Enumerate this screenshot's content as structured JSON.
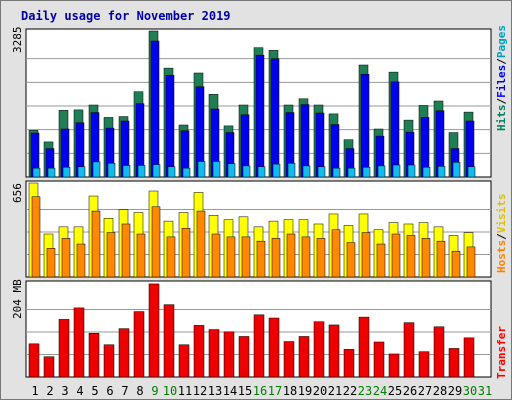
{
  "title": "Daily usage for November 2019",
  "panels": {
    "top": {
      "ylabel": "3285",
      "right_label": [
        {
          "text": "Hits",
          "color": "#008060"
        },
        {
          "text": "/",
          "color": "#000000"
        },
        {
          "text": "Files",
          "color": "#0000ff"
        },
        {
          "text": "/",
          "color": "#000000"
        },
        {
          "text": "Pages",
          "color": "#00a0c0"
        }
      ]
    },
    "middle": {
      "ylabel": "656",
      "right_label": [
        {
          "text": "Hosts",
          "color": "#ff8000"
        },
        {
          "text": "/",
          "color": "#000000"
        },
        {
          "text": "Visits",
          "color": "#e0c000"
        }
      ]
    },
    "bottom": {
      "ylabel": "204 MB",
      "right_label": [
        {
          "text": "Transfer",
          "color": "#ff0000"
        }
      ]
    }
  },
  "colors": {
    "hits": "#1e7f55",
    "files": "#0000ee",
    "pages": "#11bbee",
    "visits": "#ffff00",
    "hosts": "#ff8800",
    "transfer": "#ee0000",
    "weekday_label": "#000000",
    "weekend_label": "#008000",
    "background": "#e2e2e2",
    "plot_bg": "#ffffff"
  },
  "chart_data": {
    "type": "bar",
    "categories": [
      "1",
      "2",
      "3",
      "4",
      "5",
      "6",
      "7",
      "8",
      "9",
      "10",
      "11",
      "12",
      "13",
      "14",
      "15",
      "16",
      "17",
      "18",
      "19",
      "20",
      "21",
      "22",
      "23",
      "24",
      "25",
      "26",
      "27",
      "28",
      "29",
      "30",
      "31"
    ],
    "weekend": [
      false,
      false,
      false,
      false,
      false,
      false,
      false,
      false,
      true,
      true,
      false,
      false,
      false,
      false,
      false,
      true,
      true,
      false,
      false,
      false,
      false,
      false,
      true,
      true,
      false,
      false,
      false,
      false,
      false,
      true,
      true
    ],
    "panels": [
      {
        "name": "top",
        "ymax": 3285,
        "series": [
          {
            "name": "Hits",
            "values": [
              1050,
              790,
              1500,
              1510,
              1620,
              1340,
              1360,
              1920,
              3290,
              2450,
              1170,
              2340,
              1860,
              1150,
              1620,
              2910,
              2850,
              1620,
              1760,
              1620,
              1420,
              840,
              2520,
              1080,
              2360,
              1280,
              1610,
              1710,
              1000,
              1460
            ]
          },
          {
            "name": "Files",
            "values": [
              990,
              640,
              1080,
              1220,
              1450,
              1100,
              1260,
              1650,
              3060,
              2290,
              1040,
              2030,
              1530,
              1000,
              1400,
              2740,
              2660,
              1450,
              1630,
              1440,
              1180,
              640,
              2310,
              920,
              2140,
              1010,
              1340,
              1490,
              640,
              1260
            ]
          },
          {
            "name": "Pages",
            "values": [
              200,
              200,
              220,
              230,
              340,
              310,
              260,
              260,
              280,
              230,
              200,
              350,
              350,
              300,
              250,
              230,
              290,
              310,
              250,
              230,
              200,
              200,
              220,
              250,
              270,
              270,
              220,
              240,
              330,
              230
            ]
          }
        ]
      },
      {
        "name": "middle",
        "ymax": 656,
        "series": [
          {
            "name": "Visits",
            "values": [
              660,
              300,
              350,
              350,
              565,
              410,
              470,
              450,
              600,
              390,
              450,
              590,
              430,
              400,
              420,
              350,
              390,
              400,
              400,
              370,
              440,
              360,
              440,
              330,
              380,
              370,
              380,
              350,
              290,
              310
            ]
          },
          {
            "name": "Hosts",
            "values": [
              560,
              200,
              270,
              230,
              460,
              310,
              370,
              300,
              490,
              280,
              340,
              460,
              300,
              280,
              280,
              250,
              270,
              300,
              280,
              270,
              330,
              240,
              310,
              230,
              300,
              290,
              270,
              250,
              180,
              210
            ]
          }
        ]
      },
      {
        "name": "bottom",
        "ymax": 204,
        "series": [
          {
            "name": "Transfer",
            "values": [
              72,
              44,
              125,
              150,
              95,
              70,
              105,
              142,
              202,
              157,
              70,
              112,
              103,
              98,
              88,
              135,
              128,
              77,
              88,
              120,
              113,
              60,
              130,
              76,
              50,
              118,
              55,
              109,
              62,
              85
            ]
          }
        ]
      }
    ]
  }
}
